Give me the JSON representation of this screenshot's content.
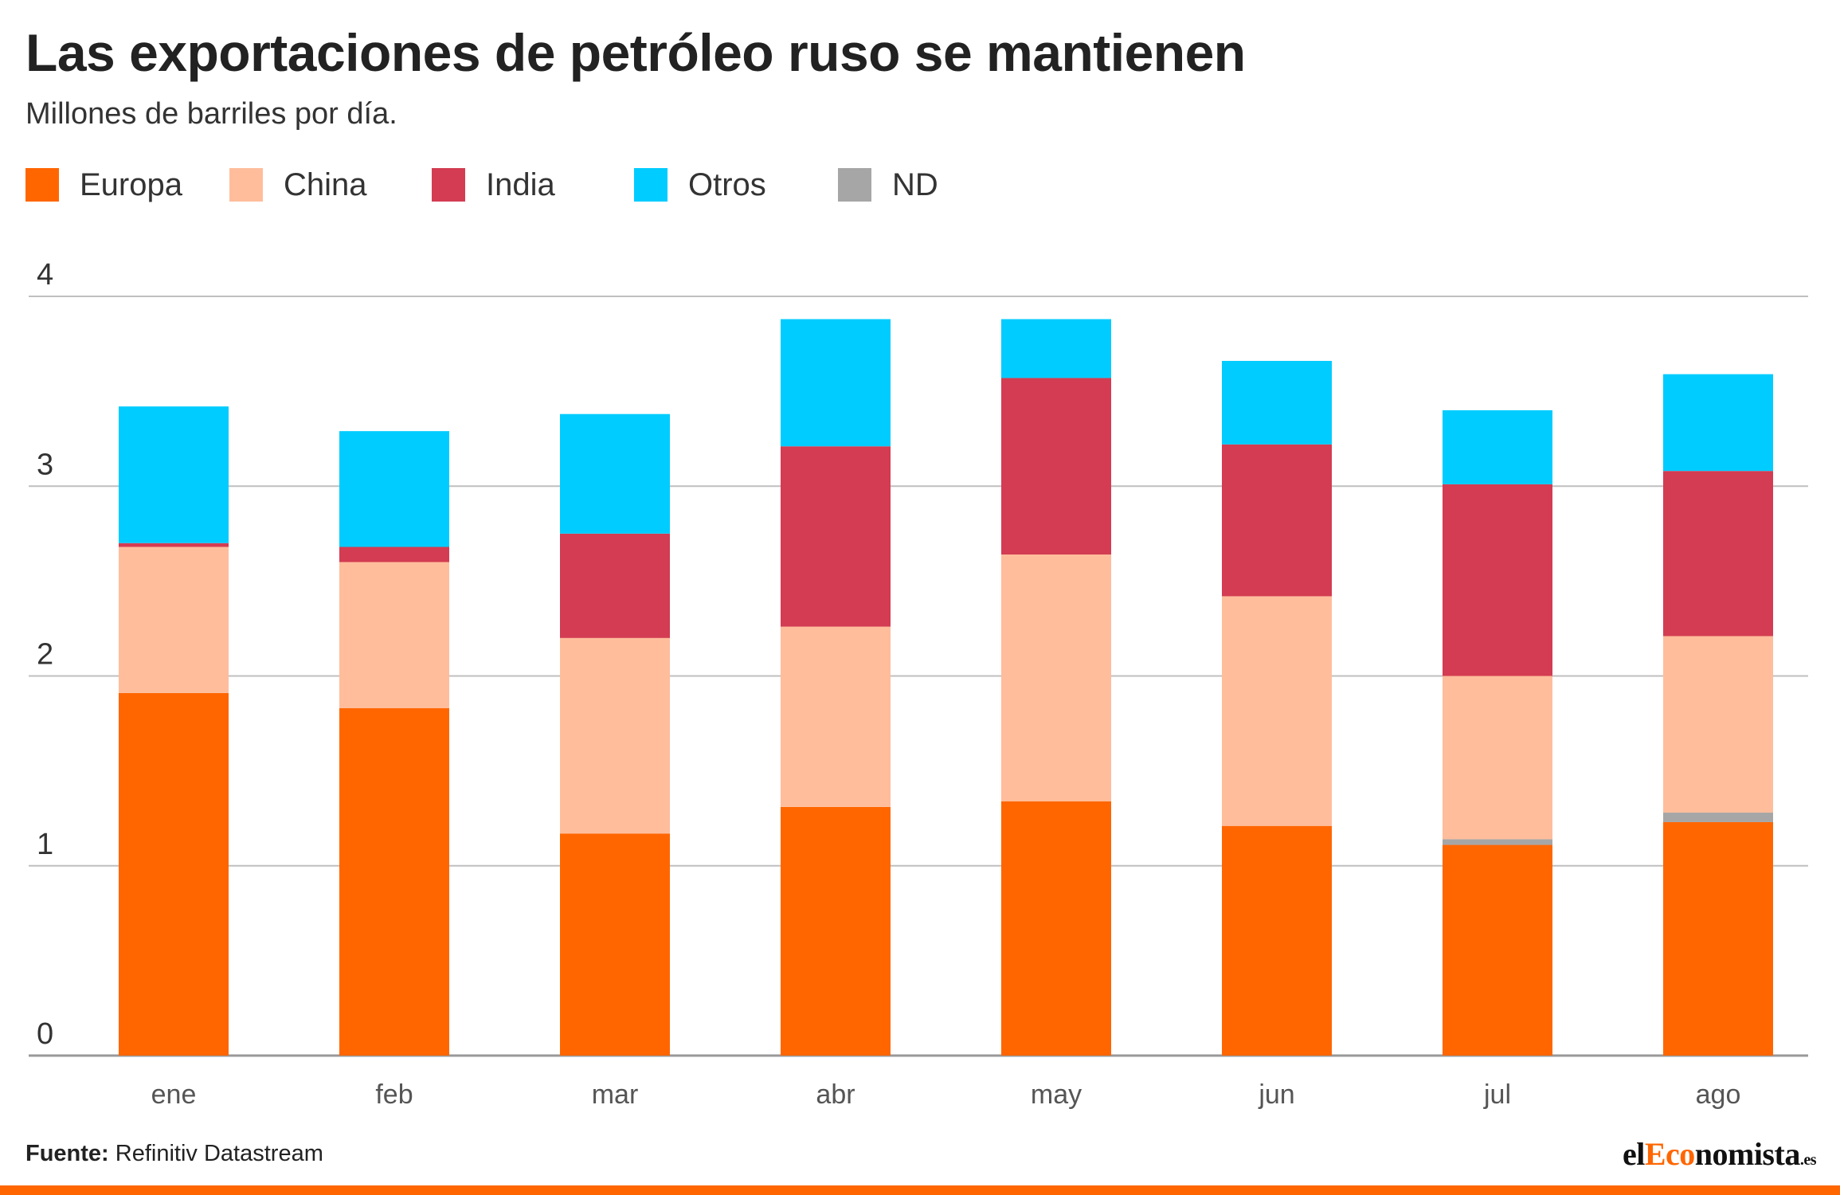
{
  "header": {
    "title": "Las exportaciones de petróleo ruso se mantienen",
    "subtitle": "Millones de barriles por día."
  },
  "legend": {
    "items": [
      {
        "label": "Europa",
        "color": "#ff6600"
      },
      {
        "label": "China",
        "color": "#ffbd9c"
      },
      {
        "label": "India",
        "color": "#d33c52"
      },
      {
        "label": "Otros",
        "color": "#00ccff"
      },
      {
        "label": "ND",
        "color": "#a6a6a6"
      }
    ]
  },
  "footer": {
    "source_label": "Fuente:",
    "source_text": "Refinitiv Datastream",
    "logo_pre": "el",
    "logo_accent": "Eco",
    "logo_post": "nomista",
    "logo_tld": ".es"
  },
  "chart_data": {
    "type": "bar",
    "stacked": true,
    "title": "Las exportaciones de petróleo ruso se mantienen",
    "subtitle": "Millones de barriles por día.",
    "categories": [
      "ene",
      "feb",
      "mar",
      "abr",
      "may",
      "jun",
      "jul",
      "ago"
    ],
    "series": [
      {
        "name": "Europa",
        "color": "#ff6600",
        "values": [
          1.91,
          1.83,
          1.17,
          1.31,
          1.34,
          1.21,
          1.11,
          1.23
        ]
      },
      {
        "name": "ND",
        "color": "#a6a6a6",
        "values": [
          0,
          0,
          0,
          0,
          0,
          0,
          0.03,
          0.05
        ]
      },
      {
        "name": "China",
        "color": "#ffbd9c",
        "values": [
          0.77,
          0.77,
          1.03,
          0.95,
          1.3,
          1.21,
          0.86,
          0.93
        ]
      },
      {
        "name": "India",
        "color": "#d33c52",
        "values": [
          0.02,
          0.08,
          0.55,
          0.95,
          0.93,
          0.8,
          1.01,
          0.87
        ]
      },
      {
        "name": "Otros",
        "color": "#00ccff",
        "values": [
          0.72,
          0.61,
          0.63,
          0.67,
          0.31,
          0.44,
          0.39,
          0.51
        ]
      }
    ],
    "yticks": [
      0,
      1,
      2,
      3,
      4
    ],
    "ylim": [
      0,
      4
    ],
    "xlabel": "",
    "ylabel": "",
    "grid": true,
    "legend_position": "top-left"
  }
}
